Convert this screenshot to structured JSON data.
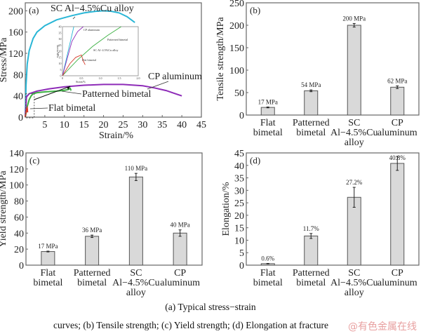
{
  "caption": {
    "line1": "(a) Typical stress−strain",
    "line2": "curves; (b) Tensile strength; (c) Yield strength; (d) Elongation at fracture"
  },
  "watermark": "@有色金属在线",
  "chart_data": [
    {
      "type": "line",
      "panel_label": "(a)",
      "xlabel": "Strain/%",
      "ylabel": "Stress/MPa",
      "xlim": [
        0,
        45
      ],
      "ylim": [
        0,
        215
      ],
      "xticks": [
        0,
        5,
        10,
        15,
        20,
        25,
        30,
        35,
        40,
        45
      ],
      "yticks": [
        0,
        40,
        80,
        120,
        160,
        200
      ],
      "series": [
        {
          "name": "SC Al−4.5%Cu alloy",
          "color": "#29b6d6",
          "x": [
            0,
            0.2,
            0.5,
            1,
            2,
            3,
            5,
            8,
            10,
            12,
            15,
            18,
            20,
            22,
            24,
            26,
            28
          ],
          "y": [
            0,
            60,
            100,
            125,
            148,
            160,
            172,
            183,
            187,
            191,
            196,
            199,
            200,
            199,
            196,
            189,
            178
          ]
        },
        {
          "name": "CP aluminum",
          "color": "#8e2cb8",
          "x": [
            0,
            0.3,
            1,
            3,
            6,
            10,
            15,
            20,
            25,
            30,
            33,
            36,
            38,
            40
          ],
          "y": [
            0,
            38,
            44,
            49,
            53,
            57,
            60,
            61.5,
            61.5,
            59,
            55,
            50,
            45,
            40
          ]
        },
        {
          "name": "Patterned bimetal",
          "color": "#3cb043",
          "x": [
            0,
            0.5,
            1,
            1.5,
            2,
            3,
            5,
            8,
            10,
            11,
            11.5,
            11.7
          ],
          "y": [
            0,
            20,
            33,
            40,
            44,
            46,
            47.5,
            49,
            50.5,
            52,
            54,
            50
          ]
        },
        {
          "name": "Flat bimetal",
          "color": "#d63a2a",
          "x": [
            0,
            0.2,
            0.35,
            0.5,
            0.55,
            0.6
          ],
          "y": [
            0,
            10,
            15,
            17,
            12,
            9
          ]
        }
      ],
      "annotations": [
        "SC Al−4.5%Cu alloy",
        "CP aluminum",
        "Patterned bimetal",
        "Flat bimetal"
      ],
      "inset": {
        "xlabel": "Strain/%",
        "ylabel": "Stress/MPa",
        "xlim": [
          0,
          2.0
        ],
        "ylim": [
          0,
          40
        ],
        "xticks": [
          "0",
          "0.5",
          "1.0",
          "1.5",
          "2.0"
        ],
        "yticks": [
          "0",
          "5",
          "10",
          "15",
          "20",
          "25",
          "30",
          "35",
          "40"
        ],
        "labels": [
          "CP aluminum",
          "Patterned bimetal",
          "SC Al−4.5%Cu alloy",
          "Flat bimetal"
        ]
      }
    },
    {
      "type": "bar",
      "panel_label": "(b)",
      "ylabel": "Tensile strength/MPa",
      "ylim": [
        0,
        250
      ],
      "yticks": [
        0,
        50,
        100,
        150,
        200,
        250
      ],
      "categories": [
        [
          "Flat",
          "bimetal"
        ],
        [
          "Patterned",
          "bimetal"
        ],
        [
          "SC",
          "Al−4.5%Cu",
          "alloy"
        ],
        [
          "CP",
          "aluminum"
        ]
      ],
      "values": [
        17,
        54,
        200,
        62
      ],
      "errors": [
        1,
        2,
        4,
        3
      ],
      "data_labels": [
        "17 MPa",
        "54 MPa",
        "200 MPa",
        "62 MPa"
      ]
    },
    {
      "type": "bar",
      "panel_label": "(c)",
      "ylabel": "Yield strength/MPa",
      "ylim": [
        0,
        140
      ],
      "yticks": [
        0,
        20,
        40,
        60,
        80,
        100,
        120,
        140
      ],
      "categories": [
        [
          "Flat",
          "bimetal"
        ],
        [
          "Patterned",
          "bimetal"
        ],
        [
          "SC",
          "Al−4.5%Cu",
          "alloy"
        ],
        [
          "CP",
          "aluminum"
        ]
      ],
      "values": [
        17,
        36,
        110,
        40
      ],
      "errors": [
        0.5,
        1.5,
        4.5,
        4
      ],
      "data_labels": [
        "17 MPa",
        "36 MPa",
        "110 MPa",
        "40 MPa"
      ]
    },
    {
      "type": "bar",
      "panel_label": "(d)",
      "ylabel": "Elongation/%",
      "ylim": [
        0,
        45
      ],
      "yticks": [
        0,
        5,
        10,
        15,
        20,
        25,
        30,
        35,
        40,
        45
      ],
      "categories": [
        [
          "Flat",
          "bimetal"
        ],
        [
          "Patterned",
          "bimetal"
        ],
        [
          "SC",
          "Al−4.5%Cu",
          "alloy"
        ],
        [
          "CP",
          "aluminum"
        ]
      ],
      "values": [
        0.6,
        11.7,
        27.2,
        40.8
      ],
      "errors": [
        0.1,
        1,
        4,
        2.8
      ],
      "data_labels": [
        "0.6%",
        "11.7%",
        "27.2%",
        "40.8%"
      ]
    }
  ],
  "style": {
    "bar_fill": "#d9d9d9",
    "bar_stroke": "#555555",
    "axis_color": "#666666"
  }
}
